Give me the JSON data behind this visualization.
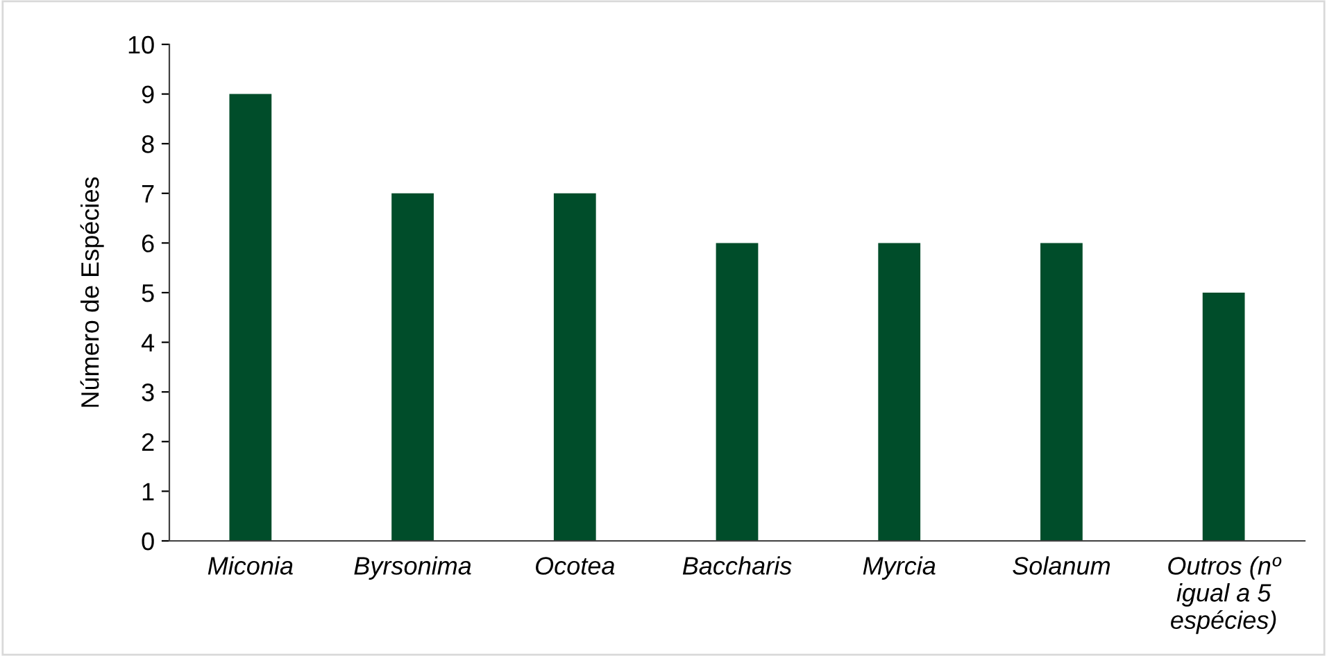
{
  "chart_data": {
    "type": "bar",
    "ylabel": "Número de Espécies",
    "categories": [
      "Miconia",
      "Byrsonima",
      "Ocotea",
      "Baccharis",
      "Myrcia",
      "Solanum",
      "Outros (nº\nigual a 5\nespécies)"
    ],
    "values": [
      9,
      7,
      7,
      6,
      6,
      6,
      5
    ],
    "color": "#004d2a",
    "ylim": [
      0,
      10
    ],
    "yticks": [
      0,
      1,
      2,
      3,
      4,
      5,
      6,
      7,
      8,
      9,
      10
    ],
    "grid": false
  }
}
